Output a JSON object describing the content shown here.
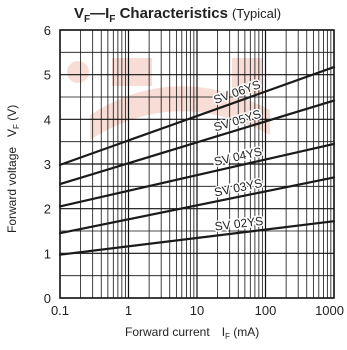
{
  "chart_data": {
    "type": "line",
    "title": {
      "main_v": "V",
      "main_v_sub": "F",
      "main_dash": "—",
      "main_i": "I",
      "main_i_sub": "F",
      "main_rest": " Characteristics",
      "note": "(Typical)"
    },
    "xlabel": {
      "text": "Forward current",
      "sym": "I",
      "sub": "F",
      "unit": " (mA)"
    },
    "ylabel": {
      "text": "Forward voltage",
      "sym": "V",
      "sub": "F",
      "unit": " (V)"
    },
    "x_scale": "log",
    "xlim": [
      0.1,
      1000
    ],
    "ylim": [
      0,
      6
    ],
    "x_ticks": [
      {
        "value": 0.1,
        "label": "0.1"
      },
      {
        "value": 1,
        "label": "1"
      },
      {
        "value": 10,
        "label": "10"
      },
      {
        "value": 100,
        "label": "100"
      },
      {
        "value": 1000,
        "label": "1000"
      }
    ],
    "y_ticks": [
      {
        "value": 0,
        "label": "0"
      },
      {
        "value": 1,
        "label": "1"
      },
      {
        "value": 2,
        "label": "2"
      },
      {
        "value": 3,
        "label": "3"
      },
      {
        "value": 4,
        "label": "4"
      },
      {
        "value": 5,
        "label": "5"
      },
      {
        "value": 6,
        "label": "6"
      }
    ],
    "grid": true,
    "series": [
      {
        "name": "SV 02YS",
        "x": [
          0.1,
          1000
        ],
        "y": [
          0.97,
          1.72
        ]
      },
      {
        "name": "SV 03YS",
        "x": [
          0.1,
          1000
        ],
        "y": [
          1.45,
          2.7
        ]
      },
      {
        "name": "SV 04YS",
        "x": [
          0.1,
          1000
        ],
        "y": [
          2.05,
          3.45
        ]
      },
      {
        "name": "SV 05YS",
        "x": [
          0.1,
          1000
        ],
        "y": [
          2.55,
          4.42
        ]
      },
      {
        "name": "SV 06YS",
        "x": [
          0.1,
          1000
        ],
        "y": [
          2.98,
          5.17
        ]
      }
    ],
    "colors": {
      "line": "#1a1a1a",
      "grid": "#111111",
      "text": "#222222",
      "watermark": "#f7ddd5"
    }
  }
}
